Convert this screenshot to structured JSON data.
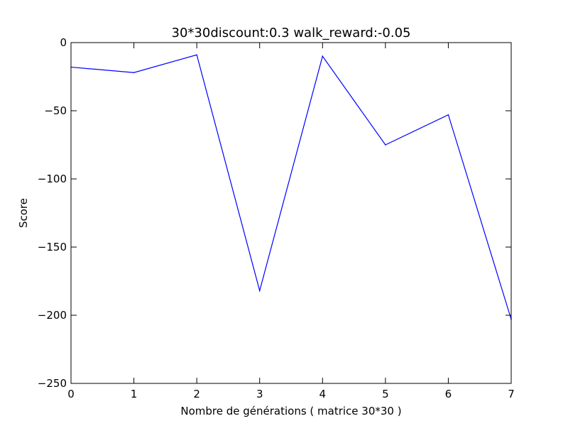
{
  "chart_data": {
    "type": "line",
    "title": "30*30discount:0.3 walk_reward:-0.05",
    "xlabel": "Nombre de générations ( matrice 30*30 )",
    "ylabel": "Score",
    "xlim": [
      0,
      7
    ],
    "ylim": [
      -250,
      0
    ],
    "xticks": [
      0,
      1,
      2,
      3,
      4,
      5,
      6,
      7
    ],
    "yticks": [
      0,
      -50,
      -100,
      -150,
      -200,
      -250
    ],
    "xtick_labels": [
      "0",
      "1",
      "2",
      "3",
      "4",
      "5",
      "6",
      "7"
    ],
    "ytick_labels": [
      "0",
      "−50",
      "−100",
      "−150",
      "−200",
      "−250"
    ],
    "grid": false,
    "series": [
      {
        "color": "#0000ff",
        "x": [
          0,
          1,
          2,
          3,
          4,
          5,
          6,
          7
        ],
        "values": [
          -18,
          -22,
          -9,
          -182,
          -10,
          -75,
          -53,
          -203
        ]
      }
    ]
  }
}
